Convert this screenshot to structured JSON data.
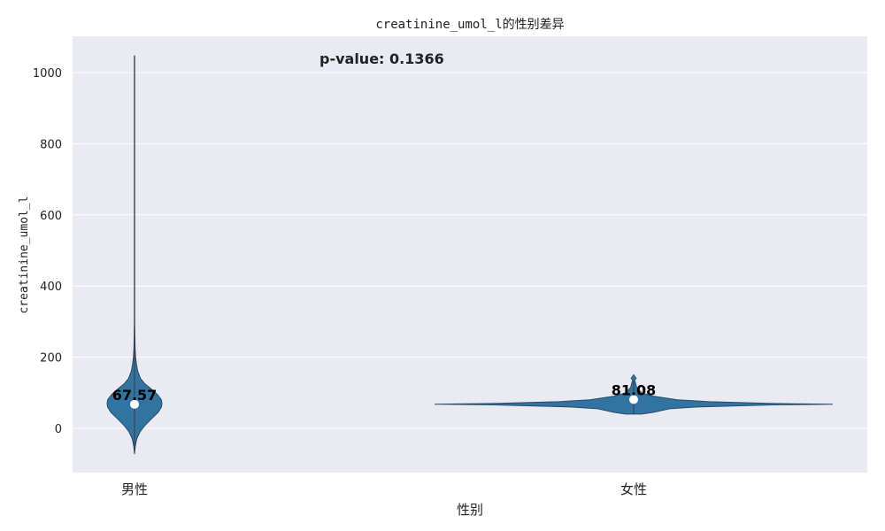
{
  "chart_data": {
    "type": "violin",
    "title": "creatinine_umol_l的性别差异",
    "xlabel": "性别",
    "ylabel": "creatinine_umol_l",
    "ylim": [
      -125,
      1100
    ],
    "yticks": [
      0,
      200,
      400,
      600,
      800,
      1000
    ],
    "grid": true,
    "categories": [
      "男性",
      "女性"
    ],
    "annotation": "p-value: 0.1366",
    "colors": {
      "violin": "#3274a1",
      "violin_edge": "#2a4b66",
      "background": "#eaeaf2",
      "grid": "#ffffff",
      "median_marker": "#ffffff"
    },
    "series": [
      {
        "category": "男性",
        "median": 67.57,
        "median_label": "67.57",
        "min": -72,
        "max": 1047,
        "density": [
          [
            -72,
            0.0
          ],
          [
            -50,
            0.03
          ],
          [
            -30,
            0.08
          ],
          [
            -10,
            0.2
          ],
          [
            10,
            0.4
          ],
          [
            30,
            0.66
          ],
          [
            45,
            0.86
          ],
          [
            60,
            0.98
          ],
          [
            70,
            1.0
          ],
          [
            80,
            0.98
          ],
          [
            95,
            0.84
          ],
          [
            110,
            0.62
          ],
          [
            125,
            0.38
          ],
          [
            140,
            0.22
          ],
          [
            160,
            0.12
          ],
          [
            180,
            0.07
          ],
          [
            200,
            0.04
          ],
          [
            230,
            0.02
          ],
          [
            300,
            0.008
          ],
          [
            1047,
            0.005
          ]
        ]
      },
      {
        "category": "女性",
        "median": 81.08,
        "median_label": "81.08",
        "outliers": [
          141
        ],
        "min": 40,
        "max": 141,
        "density": [
          [
            40,
            0.04
          ],
          [
            45,
            0.1
          ],
          [
            50,
            0.14
          ],
          [
            55,
            0.18
          ],
          [
            60,
            0.32
          ],
          [
            66,
            0.7
          ],
          [
            68,
            1.0
          ],
          [
            70,
            0.7
          ],
          [
            75,
            0.38
          ],
          [
            80,
            0.22
          ],
          [
            90,
            0.1
          ],
          [
            100,
            0.04
          ],
          [
            115,
            0.015
          ],
          [
            130,
            0.008
          ],
          [
            141,
            0.0
          ]
        ]
      }
    ]
  }
}
